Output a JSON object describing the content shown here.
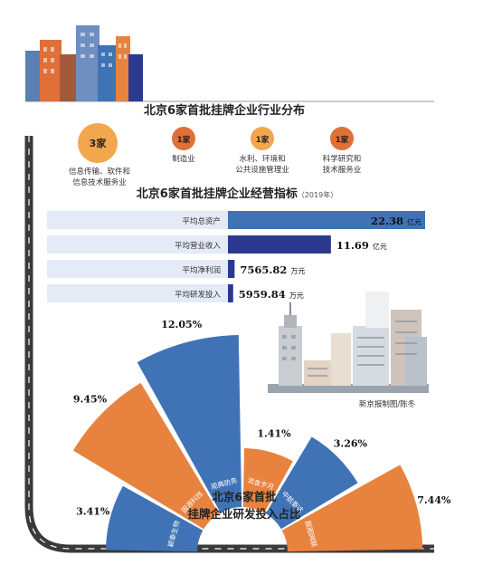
{
  "colors": {
    "orange": "#e8823f",
    "orange_light": "#f2a64d",
    "blue": "#3f73b5",
    "navy": "#2b3a8f",
    "pale_blue": "#e4ebf6",
    "dark_text": "#222222",
    "road": "#3a3a3a"
  },
  "section1": {
    "title": "北京6家首批挂牌企业行业分布",
    "items": [
      {
        "count": "3家",
        "label1": "信息传输、软件和",
        "label2": "信息技术服务业"
      },
      {
        "count": "1家",
        "label1": "制造业",
        "label2": ""
      },
      {
        "count": "1家",
        "label1": "水利、环境和",
        "label2": "公共设施管理业"
      },
      {
        "count": "1家",
        "label1": "科学研究和",
        "label2": "技术服务业"
      }
    ]
  },
  "section2": {
    "title": "北京6家首批挂牌企业经营指标",
    "year": "（2019年）",
    "rows": [
      {
        "label": "平均总资产",
        "value": "22.38",
        "unit": "亿元",
        "amount": 2238000000
      },
      {
        "label": "平均营业收入",
        "value": "11.69",
        "unit": "亿元",
        "amount": 1169000000
      },
      {
        "label": "平均净利润",
        "value": "7565.82",
        "unit": "万元",
        "amount": 75658200
      },
      {
        "label": "平均研发投入",
        "value": "5959.84",
        "unit": "万元",
        "amount": 59598400
      }
    ]
  },
  "credit": "新京报制图/陈冬",
  "chart_data": {
    "type": "pie",
    "title": "北京6家首批挂牌企业研发投入占比",
    "title_line1": "北京6家首批",
    "title_line2": "挂牌企业研发投入占比",
    "slices": [
      {
        "name": "颖泰生物",
        "value": 3.41,
        "label": "3.41%",
        "color": "#3f73b5"
      },
      {
        "name": "国源科技",
        "value": 9.45,
        "label": "9.45%",
        "color": "#e8823f"
      },
      {
        "name": "观典防务",
        "value": 12.05,
        "label": "12.05%",
        "color": "#3f73b5"
      },
      {
        "name": "流金岁月",
        "value": 1.41,
        "label": "1.41%",
        "color": "#e8823f"
      },
      {
        "name": "中航泰达",
        "value": 3.26,
        "label": "3.26%",
        "color": "#3f73b5"
      },
      {
        "name": "殷图网联",
        "value": 7.44,
        "label": "7.44%",
        "color": "#e8823f"
      }
    ]
  }
}
